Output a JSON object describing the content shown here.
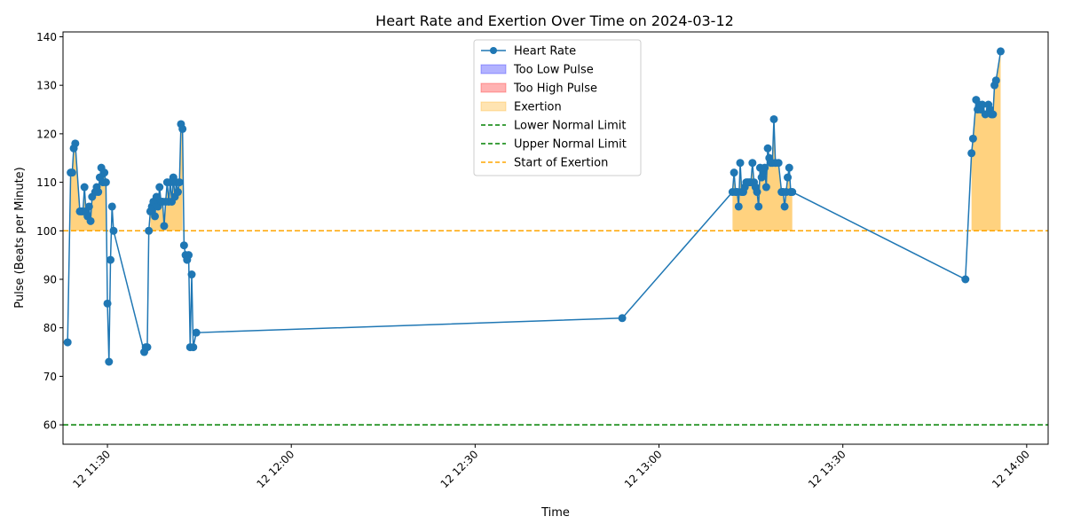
{
  "chart_data": {
    "type": "line",
    "title": "Heart Rate and Exertion Over Time on 2024-03-12",
    "xlabel": "Time",
    "ylabel": "Pulse (Beats per Minute)",
    "xlim": [
      "11:22:45",
      "14:03:30"
    ],
    "ylim": [
      56,
      141
    ],
    "y_ticks": [
      60,
      70,
      80,
      90,
      100,
      110,
      120,
      130,
      140
    ],
    "x_ticks": [
      {
        "t": "11:30",
        "label": "12 11:30"
      },
      {
        "t": "12:00",
        "label": "12 12:00"
      },
      {
        "t": "12:30",
        "label": "12 12:30"
      },
      {
        "t": "13:00",
        "label": "13:00",
        "full": "12 13:00"
      },
      {
        "t": "13:30",
        "label": "12 13:30"
      },
      {
        "t": "14:00",
        "label": "12 14:00"
      }
    ],
    "grid": false,
    "legend_position": "top-center",
    "colors": {
      "heart_rate": "#1f77b4",
      "too_low": "#0000ff",
      "too_high": "#ff0000",
      "exertion": "#ffa500",
      "normal_limit": "#008000",
      "exertion_line": "#ffa500"
    },
    "thresholds": {
      "lower_normal": 60,
      "upper_normal": 100,
      "exertion_start": 100
    },
    "legend": [
      {
        "key": "heart_rate",
        "label": "Heart Rate",
        "kind": "line-marker"
      },
      {
        "key": "too_low",
        "label": "Too Low Pulse",
        "kind": "patch"
      },
      {
        "key": "too_high",
        "label": "Too High Pulse",
        "kind": "patch"
      },
      {
        "key": "exertion",
        "label": "Exertion",
        "kind": "patch"
      },
      {
        "key": "normal_limit",
        "label": "Lower Normal Limit",
        "kind": "dash"
      },
      {
        "key": "normal_limit",
        "label": "Upper Normal Limit",
        "kind": "dash"
      },
      {
        "key": "exertion_line",
        "label": "Start of Exertion",
        "kind": "dash"
      }
    ],
    "series": [
      {
        "name": "Heart Rate",
        "points": [
          [
            "11:23:30",
            77
          ],
          [
            "11:24:00",
            112
          ],
          [
            "11:24:15",
            112
          ],
          [
            "11:24:30",
            117
          ],
          [
            "11:24:45",
            118
          ],
          [
            "11:25:30",
            104
          ],
          [
            "11:25:45",
            104
          ],
          [
            "11:26:00",
            104
          ],
          [
            "11:26:15",
            109
          ],
          [
            "11:26:30",
            104
          ],
          [
            "11:26:45",
            103
          ],
          [
            "11:27:00",
            105
          ],
          [
            "11:27:15",
            102
          ],
          [
            "11:27:30",
            107
          ],
          [
            "11:28:00",
            108
          ],
          [
            "11:28:15",
            109
          ],
          [
            "11:28:30",
            108
          ],
          [
            "11:28:45",
            111
          ],
          [
            "11:29:00",
            113
          ],
          [
            "11:29:15",
            110
          ],
          [
            "11:29:30",
            112
          ],
          [
            "11:29:45",
            110
          ],
          [
            "11:30:00",
            85
          ],
          [
            "11:30:15",
            73
          ],
          [
            "11:30:30",
            94
          ],
          [
            "11:30:45",
            105
          ],
          [
            "11:31:00",
            100
          ],
          [
            "11:36:00",
            75
          ],
          [
            "11:36:15",
            76
          ],
          [
            "11:36:30",
            76
          ],
          [
            "11:36:45",
            100
          ],
          [
            "11:37:00",
            104
          ],
          [
            "11:37:15",
            105
          ],
          [
            "11:37:30",
            106
          ],
          [
            "11:37:45",
            103
          ],
          [
            "11:38:00",
            107
          ],
          [
            "11:38:15",
            105
          ],
          [
            "11:38:30",
            109
          ],
          [
            "11:38:45",
            106
          ],
          [
            "11:39:00",
            106
          ],
          [
            "11:39:15",
            101
          ],
          [
            "11:39:30",
            106
          ],
          [
            "11:39:45",
            110
          ],
          [
            "11:40:00",
            106
          ],
          [
            "11:40:15",
            110
          ],
          [
            "11:40:30",
            106
          ],
          [
            "11:40:45",
            111
          ],
          [
            "11:41:00",
            107
          ],
          [
            "11:41:15",
            110
          ],
          [
            "11:41:30",
            108
          ],
          [
            "11:41:45",
            110
          ],
          [
            "11:42:00",
            122
          ],
          [
            "11:42:15",
            121
          ],
          [
            "11:42:30",
            97
          ],
          [
            "11:42:45",
            95
          ],
          [
            "11:43:00",
            94
          ],
          [
            "11:43:15",
            95
          ],
          [
            "11:43:30",
            76
          ],
          [
            "11:43:45",
            91
          ],
          [
            "11:44:00",
            76
          ],
          [
            "11:44:30",
            79
          ],
          [
            "12:54:00",
            82
          ],
          [
            "13:12:00",
            108
          ],
          [
            "13:12:15",
            112
          ],
          [
            "13:12:30",
            108
          ],
          [
            "13:12:45",
            108
          ],
          [
            "13:13:00",
            105
          ],
          [
            "13:13:15",
            114
          ],
          [
            "13:13:30",
            108
          ],
          [
            "13:13:45",
            108
          ],
          [
            "13:14:00",
            109
          ],
          [
            "13:14:15",
            110
          ],
          [
            "13:14:30",
            110
          ],
          [
            "13:14:45",
            110
          ],
          [
            "13:15:00",
            110
          ],
          [
            "13:15:15",
            114
          ],
          [
            "13:15:30",
            110
          ],
          [
            "13:15:45",
            109
          ],
          [
            "13:16:00",
            108
          ],
          [
            "13:16:15",
            105
          ],
          [
            "13:16:30",
            113
          ],
          [
            "13:16:45",
            111
          ],
          [
            "13:17:00",
            112
          ],
          [
            "13:17:15",
            113
          ],
          [
            "13:17:30",
            109
          ],
          [
            "13:17:45",
            117
          ],
          [
            "13:18:00",
            115
          ],
          [
            "13:18:15",
            114
          ],
          [
            "13:18:30",
            114
          ],
          [
            "13:18:45",
            123
          ],
          [
            "13:19:00",
            114
          ],
          [
            "13:19:30",
            114
          ],
          [
            "13:20:00",
            108
          ],
          [
            "13:20:15",
            108
          ],
          [
            "13:20:30",
            105
          ],
          [
            "13:20:45",
            108
          ],
          [
            "13:21:00",
            111
          ],
          [
            "13:21:15",
            113
          ],
          [
            "13:21:30",
            108
          ],
          [
            "13:21:45",
            108
          ],
          [
            "13:50:00",
            90
          ],
          [
            "13:51:00",
            116
          ],
          [
            "13:51:15",
            119
          ],
          [
            "13:51:45",
            127
          ],
          [
            "13:52:00",
            125
          ],
          [
            "13:52:15",
            126
          ],
          [
            "13:52:30",
            125
          ],
          [
            "13:52:45",
            126
          ],
          [
            "13:53:15",
            124
          ],
          [
            "13:53:45",
            126
          ],
          [
            "13:54:00",
            125
          ],
          [
            "13:54:15",
            124
          ],
          [
            "13:54:30",
            124
          ],
          [
            "13:54:45",
            130
          ],
          [
            "13:55:00",
            131
          ],
          [
            "13:55:45",
            137
          ]
        ]
      }
    ]
  }
}
